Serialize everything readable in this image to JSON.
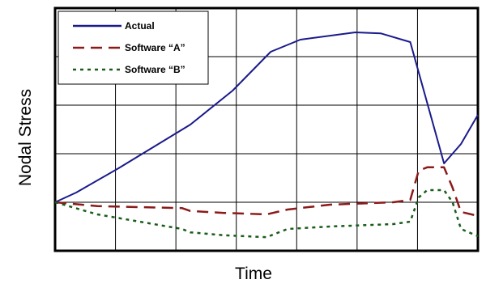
{
  "chart_data": {
    "type": "line",
    "xlabel": "Time",
    "ylabel": "Nodal Stress",
    "grid": true,
    "xlim": [
      0,
      10
    ],
    "ylim": [
      -1,
      4
    ],
    "legend": {
      "position": "top-left",
      "entries": [
        "Actual",
        "Software “A”",
        "Software “B”"
      ]
    },
    "series": [
      {
        "name": "Actual",
        "color": "#1a1a8c",
        "style": "solid",
        "points": [
          [
            0,
            0
          ],
          [
            0.5,
            0.2
          ],
          [
            1.5,
            0.7
          ],
          [
            3.2,
            1.6
          ],
          [
            4.2,
            2.3
          ],
          [
            5.1,
            3.1
          ],
          [
            5.8,
            3.35
          ],
          [
            7.1,
            3.5
          ],
          [
            7.7,
            3.48
          ],
          [
            8.4,
            3.3
          ],
          [
            9.2,
            0.8
          ],
          [
            9.6,
            1.2
          ],
          [
            10,
            1.8
          ]
        ]
      },
      {
        "name": "Software “A”",
        "color": "#8b1a1a",
        "style": "dashed",
        "points": [
          [
            0,
            0
          ],
          [
            1,
            -0.08
          ],
          [
            2,
            -0.1
          ],
          [
            3,
            -0.12
          ],
          [
            3.2,
            -0.18
          ],
          [
            4,
            -0.22
          ],
          [
            5,
            -0.25
          ],
          [
            5.5,
            -0.15
          ],
          [
            6.5,
            -0.05
          ],
          [
            8,
            0.0
          ],
          [
            8.4,
            0.05
          ],
          [
            8.6,
            0.65
          ],
          [
            8.8,
            0.72
          ],
          [
            9.2,
            0.72
          ],
          [
            9.4,
            0.3
          ],
          [
            9.6,
            -0.2
          ],
          [
            10,
            -0.28
          ]
        ]
      },
      {
        "name": "Software “B”",
        "color": "#1a5c1a",
        "style": "dotted",
        "points": [
          [
            0,
            0
          ],
          [
            1,
            -0.25
          ],
          [
            2,
            -0.4
          ],
          [
            3,
            -0.55
          ],
          [
            3.2,
            -0.62
          ],
          [
            4,
            -0.68
          ],
          [
            5,
            -0.72
          ],
          [
            5.5,
            -0.55
          ],
          [
            6.5,
            -0.5
          ],
          [
            8,
            -0.45
          ],
          [
            8.4,
            -0.4
          ],
          [
            8.6,
            0.1
          ],
          [
            8.8,
            0.25
          ],
          [
            9.2,
            0.25
          ],
          [
            9.4,
            0.0
          ],
          [
            9.6,
            -0.55
          ],
          [
            10,
            -0.7
          ]
        ]
      }
    ]
  }
}
